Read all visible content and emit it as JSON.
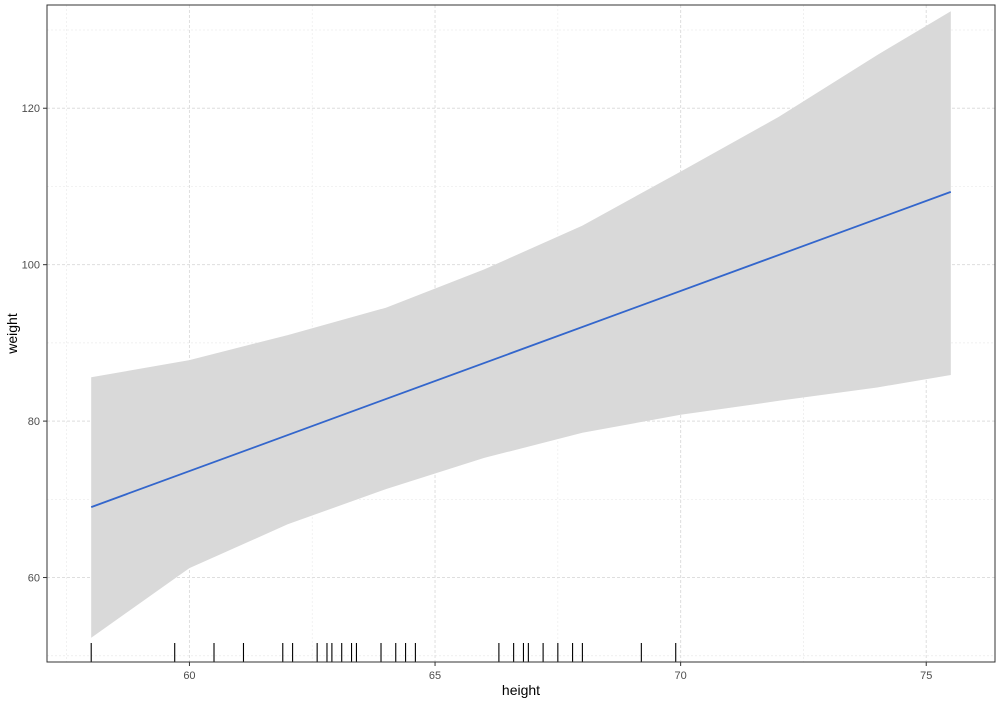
{
  "chart_data": {
    "type": "line",
    "xlabel": "height",
    "ylabel": "weight",
    "xlim": [
      57.1,
      76.4
    ],
    "ylim": [
      49.2,
      133.2
    ],
    "xticks": [
      60,
      65,
      70,
      75
    ],
    "yticks": [
      60,
      80,
      100,
      120
    ],
    "x_tick_labels": [
      "60",
      "65",
      "70",
      "75"
    ],
    "y_tick_labels": [
      "60",
      "80",
      "100",
      "120"
    ],
    "grid": true,
    "series": [
      {
        "kind": "fit-line",
        "color": "#3366cc",
        "x": [
          58,
          75.5
        ],
        "y": [
          69,
          109.3
        ]
      }
    ],
    "confidence_band": {
      "color": "#d9d9d9",
      "x": [
        58,
        60,
        62,
        64,
        66,
        68,
        70,
        72,
        74,
        75.5
      ],
      "lower": [
        52.3,
        61.2,
        66.8,
        71.3,
        75.3,
        78.5,
        80.8,
        82.6,
        84.3,
        85.9
      ],
      "upper": [
        85.6,
        87.8,
        91.0,
        94.5,
        99.4,
        105.0,
        111.9,
        118.9,
        126.8,
        132.4
      ]
    },
    "rug_x": [
      58,
      59.7,
      60.5,
      61.1,
      61.9,
      62.1,
      62.6,
      62.8,
      62.9,
      63.1,
      63.3,
      63.4,
      63.9,
      64.2,
      64.4,
      64.6,
      66.3,
      66.6,
      66.8,
      66.9,
      67.2,
      67.5,
      67.8,
      68.0,
      69.2,
      69.9
    ]
  }
}
